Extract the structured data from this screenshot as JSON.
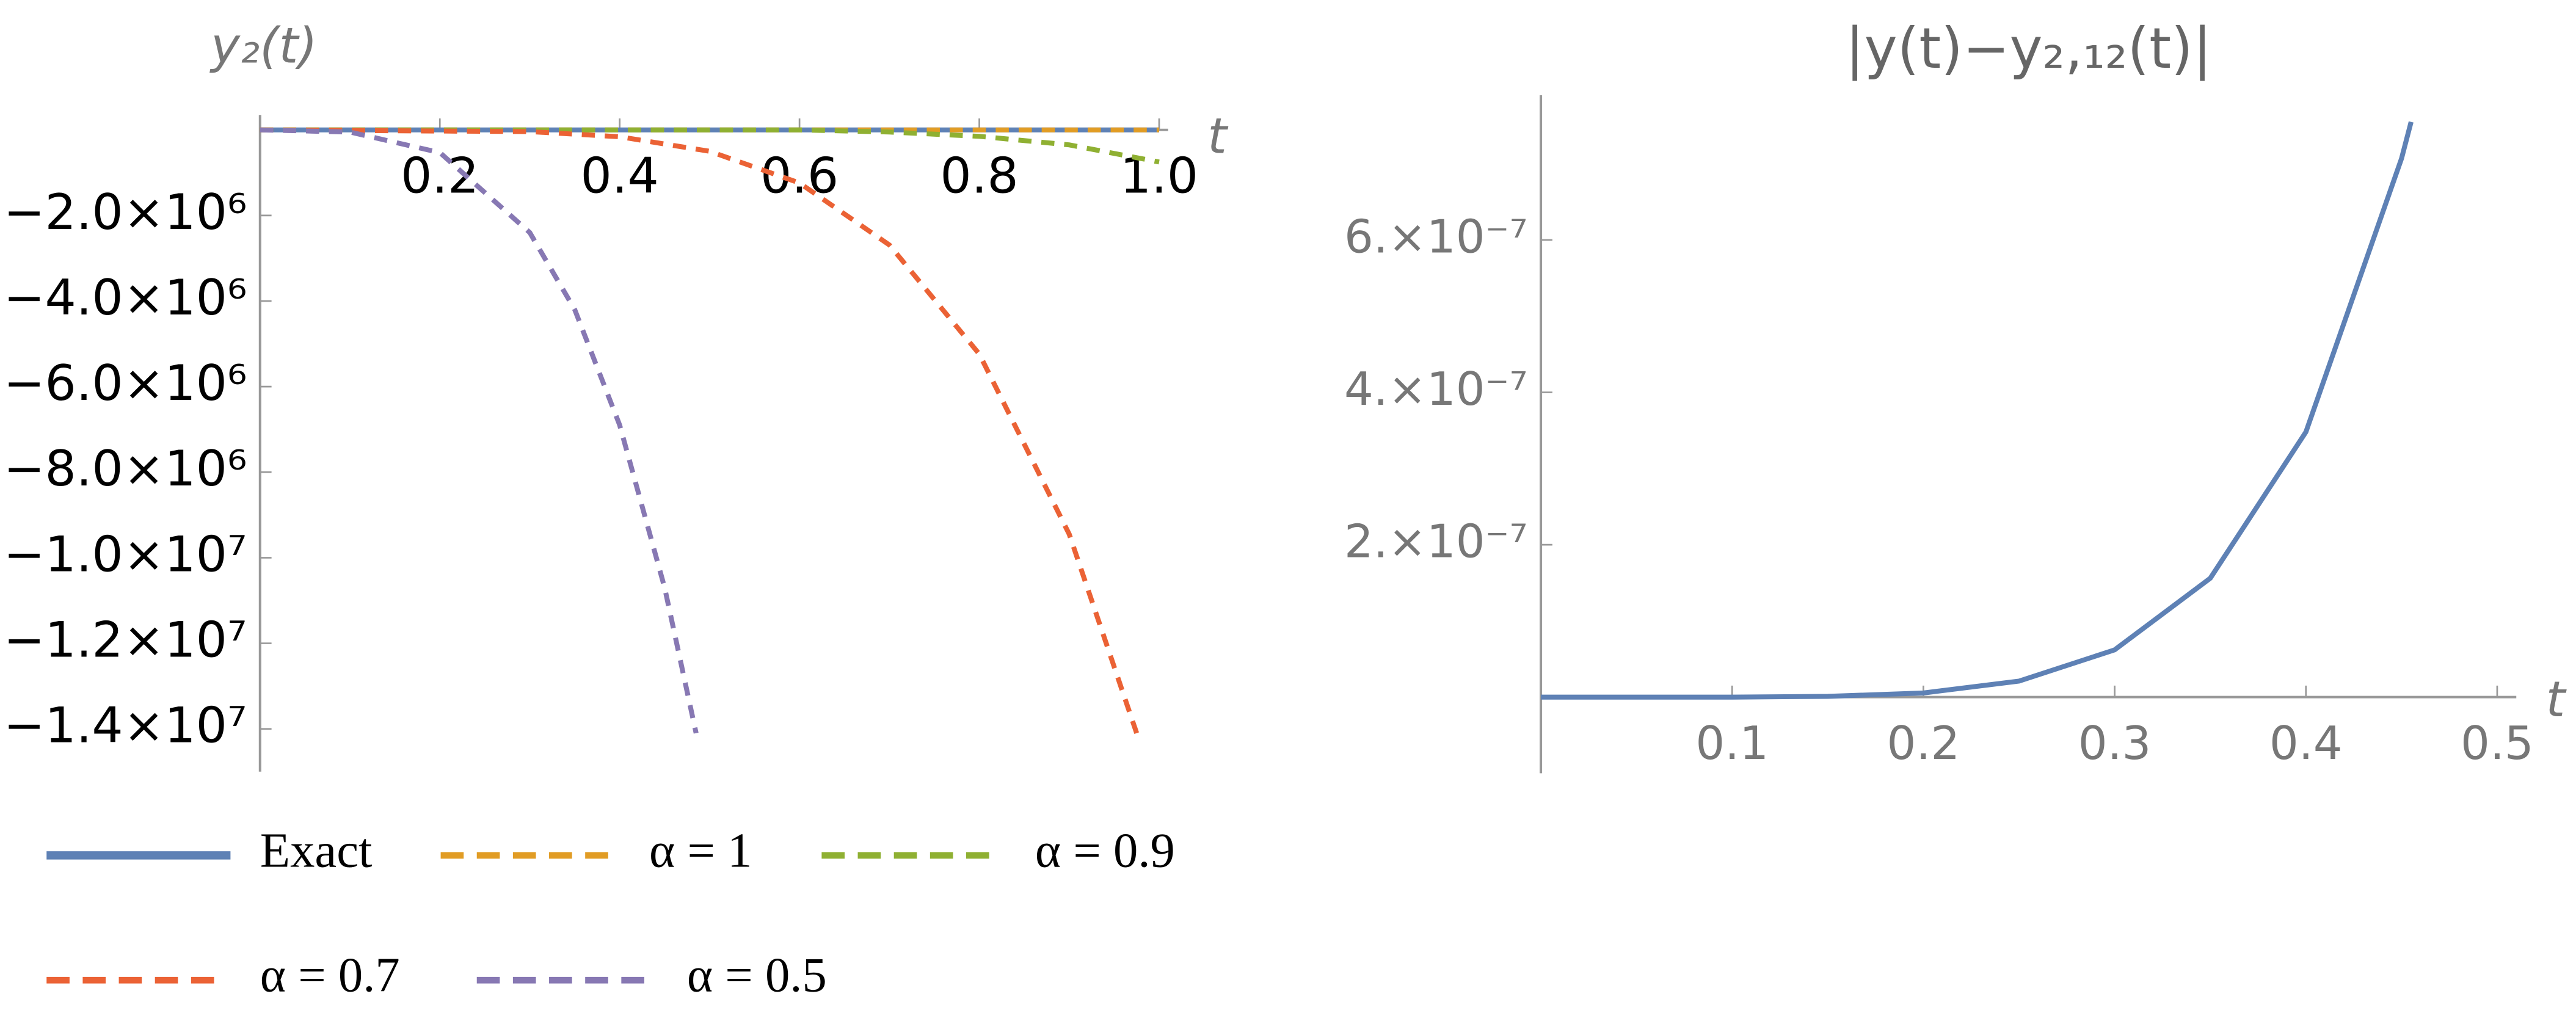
{
  "chart_data": [
    {
      "type": "line",
      "y_label": "y₂(t)",
      "x_label": "t",
      "xlim": [
        0,
        1.01
      ],
      "ylim": [
        -15000000,
        350000
      ],
      "xticks": [
        0.2,
        0.4,
        0.6,
        0.8,
        {
          "value": 1,
          "label": "1.0"
        }
      ],
      "yticks": [
        {
          "value": -2000000,
          "label": "−2.0×10⁶"
        },
        {
          "value": -4000000,
          "label": "−4.0×10⁶"
        },
        {
          "value": -6000000,
          "label": "−6.0×10⁶"
        },
        {
          "value": -8000000,
          "label": "−8.0×10⁶"
        },
        {
          "value": -10000000,
          "label": "−1.0×10⁷"
        },
        {
          "value": -12000000,
          "label": "−1.2×10⁷"
        },
        {
          "value": -14000000,
          "label": "−1.4×10⁷"
        }
      ],
      "series": [
        {
          "name": "Exact",
          "color": "#5e81b5",
          "style": "solid",
          "x": [
            0,
            0.25,
            0.5,
            0.75,
            1
          ],
          "values": [
            0,
            0,
            0,
            0,
            0
          ]
        },
        {
          "name": "α = 1",
          "color": "#e19c24",
          "style": "dashed",
          "x": [
            0,
            0.25,
            0.5,
            0.75,
            1
          ],
          "values": [
            0,
            0,
            0,
            0,
            0
          ]
        },
        {
          "name": "α = 0.9",
          "color": "#8fb032",
          "style": "dashed",
          "x": [
            0,
            0.6,
            0.7,
            0.8,
            0.9,
            1
          ],
          "values": [
            0,
            0,
            -50000,
            -150000,
            -350000,
            -750000
          ]
        },
        {
          "name": "α = 0.7",
          "color": "#eb6235",
          "style": "dashed",
          "x": [
            0,
            0.3,
            0.4,
            0.5,
            0.6,
            0.7,
            0.8,
            0.9,
            0.975
          ],
          "values": [
            0,
            -40000,
            -160000,
            -500000,
            -1240000,
            -2690000,
            -5240000,
            -9450000,
            -14100000
          ]
        },
        {
          "name": "α = 0.5",
          "color": "#8778b3",
          "style": "dashed",
          "x": [
            0,
            0.1,
            0.2,
            0.3,
            0.35,
            0.4,
            0.45,
            0.485
          ],
          "values": [
            0,
            -50000,
            -530000,
            -2400000,
            -4200000,
            -6900000,
            -10700000,
            -14100000
          ]
        }
      ]
    },
    {
      "type": "line",
      "title": "|y(t)−y₂,₁₂(t)|",
      "x_label": "t",
      "xlim": [
        0,
        0.51
      ],
      "ylim": [
        -1e-07,
        7.9e-07
      ],
      "xticks": [
        0.1,
        0.2,
        0.3,
        0.4,
        0.5
      ],
      "yticks": [
        {
          "value": 2e-07,
          "label": "2.×10⁻⁷"
        },
        {
          "value": 4e-07,
          "label": "4.×10⁻⁷"
        },
        {
          "value": 6e-07,
          "label": "6.×10⁻⁷"
        }
      ],
      "series": [
        {
          "color": "#5e81b5",
          "style": "solid",
          "x": [
            0,
            0.05,
            0.1,
            0.15,
            0.2,
            0.25,
            0.3,
            0.35,
            0.4,
            0.45,
            0.455
          ],
          "values": [
            0,
            0,
            0,
            1e-09,
            5.4e-09,
            2.1e-08,
            6.2e-08,
            1.56e-07,
            3.48e-07,
            7.07e-07,
            7.55e-07
          ]
        }
      ]
    }
  ]
}
